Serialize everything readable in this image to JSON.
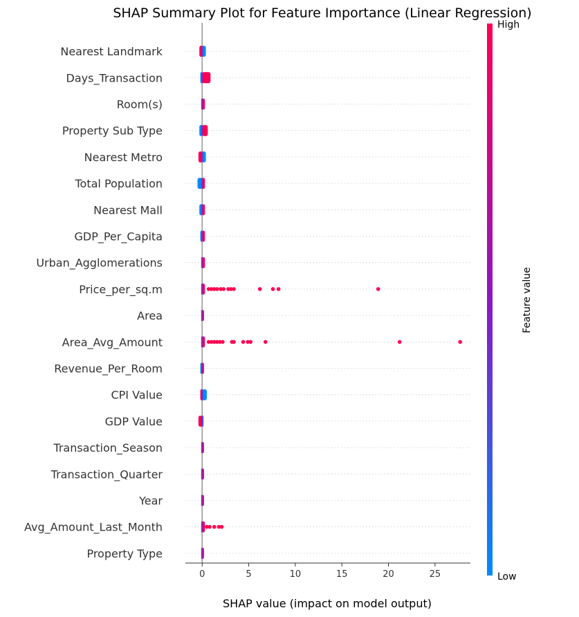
{
  "chart_data": {
    "type": "scatter",
    "subtype": "beeswarm",
    "title": "SHAP Summary Plot for Feature Importance (Linear Regression)",
    "xlabel": "SHAP value (impact on model output)",
    "xlim": [
      -1.8,
      28.8
    ],
    "xticks": [
      0,
      5,
      10,
      15,
      20,
      25
    ],
    "colorbar": {
      "label": "Feature value",
      "high": "High",
      "low": "Low",
      "high_color": "#ff0052",
      "mid_color": "#8b17c2",
      "low_color": "#008bfb"
    },
    "features": [
      {
        "name": "Nearest Landmark",
        "min": -0.3,
        "max": 0.4,
        "low_side": "right",
        "points": []
      },
      {
        "name": "Days_Transaction",
        "min": -0.2,
        "max": 0.9,
        "low_side": "left",
        "points": []
      },
      {
        "name": "Room(s)",
        "min": -0.1,
        "max": 0.3,
        "low_side": "left",
        "points": []
      },
      {
        "name": "Property Sub Type",
        "min": -0.3,
        "max": 0.6,
        "low_side": "left",
        "points": []
      },
      {
        "name": "Nearest Metro",
        "min": -0.4,
        "max": 0.4,
        "low_side": "right",
        "points": []
      },
      {
        "name": "Total Population",
        "min": -0.5,
        "max": 0.3,
        "low_side": "left",
        "points": []
      },
      {
        "name": "Nearest Mall",
        "min": -0.3,
        "max": 0.3,
        "low_side": "left",
        "points": []
      },
      {
        "name": "GDP_Per_Capita",
        "min": -0.2,
        "max": 0.3,
        "low_side": "left",
        "points": []
      },
      {
        "name": "Urban_Agglomerations",
        "min": -0.1,
        "max": 0.3,
        "low_side": "left",
        "points": []
      },
      {
        "name": "Price_per_sq.m",
        "min": -0.1,
        "max": 0.3,
        "low_side": "left",
        "points": [
          [
            0.7,
            1
          ],
          [
            1.0,
            1
          ],
          [
            1.3,
            1
          ],
          [
            1.6,
            1
          ],
          [
            2.0,
            1
          ],
          [
            2.3,
            1
          ],
          [
            2.8,
            1
          ],
          [
            3.1,
            1
          ],
          [
            3.4,
            1
          ],
          [
            6.2,
            1
          ],
          [
            7.6,
            1
          ],
          [
            8.2,
            1
          ],
          [
            18.9,
            1
          ]
        ]
      },
      {
        "name": "Area",
        "min": -0.1,
        "max": 0.2,
        "low_side": "left",
        "points": []
      },
      {
        "name": "Area_Avg_Amount",
        "min": -0.1,
        "max": 0.3,
        "low_side": "left",
        "points": [
          [
            0.7,
            1
          ],
          [
            1.0,
            1
          ],
          [
            1.3,
            1
          ],
          [
            1.6,
            1
          ],
          [
            1.9,
            1
          ],
          [
            2.2,
            1
          ],
          [
            3.2,
            1
          ],
          [
            3.4,
            1
          ],
          [
            4.4,
            1
          ],
          [
            4.9,
            1
          ],
          [
            5.2,
            1
          ],
          [
            6.8,
            1
          ],
          [
            21.2,
            1
          ],
          [
            27.7,
            1
          ]
        ]
      },
      {
        "name": "Revenue_Per_Room",
        "min": -0.2,
        "max": 0.2,
        "low_side": "left",
        "points": []
      },
      {
        "name": "CPI Value",
        "min": -0.2,
        "max": 0.5,
        "low_side": "right",
        "points": []
      },
      {
        "name": "GDP Value",
        "min": -0.4,
        "max": 0.1,
        "low_side": "right",
        "points": []
      },
      {
        "name": "Transaction_Season",
        "min": -0.1,
        "max": 0.2,
        "low_side": "left",
        "points": []
      },
      {
        "name": "Transaction_Quarter",
        "min": -0.1,
        "max": 0.2,
        "low_side": "left",
        "points": []
      },
      {
        "name": "Year",
        "min": -0.1,
        "max": 0.2,
        "low_side": "left",
        "points": []
      },
      {
        "name": "Avg_Amount_Last_Month",
        "min": -0.1,
        "max": 0.3,
        "low_side": "left",
        "points": [
          [
            0.5,
            1
          ],
          [
            0.8,
            1
          ],
          [
            1.3,
            1
          ],
          [
            1.8,
            1
          ],
          [
            2.1,
            1
          ]
        ]
      },
      {
        "name": "Property Type",
        "min": -0.1,
        "max": 0.2,
        "low_side": "left",
        "points": []
      }
    ]
  }
}
